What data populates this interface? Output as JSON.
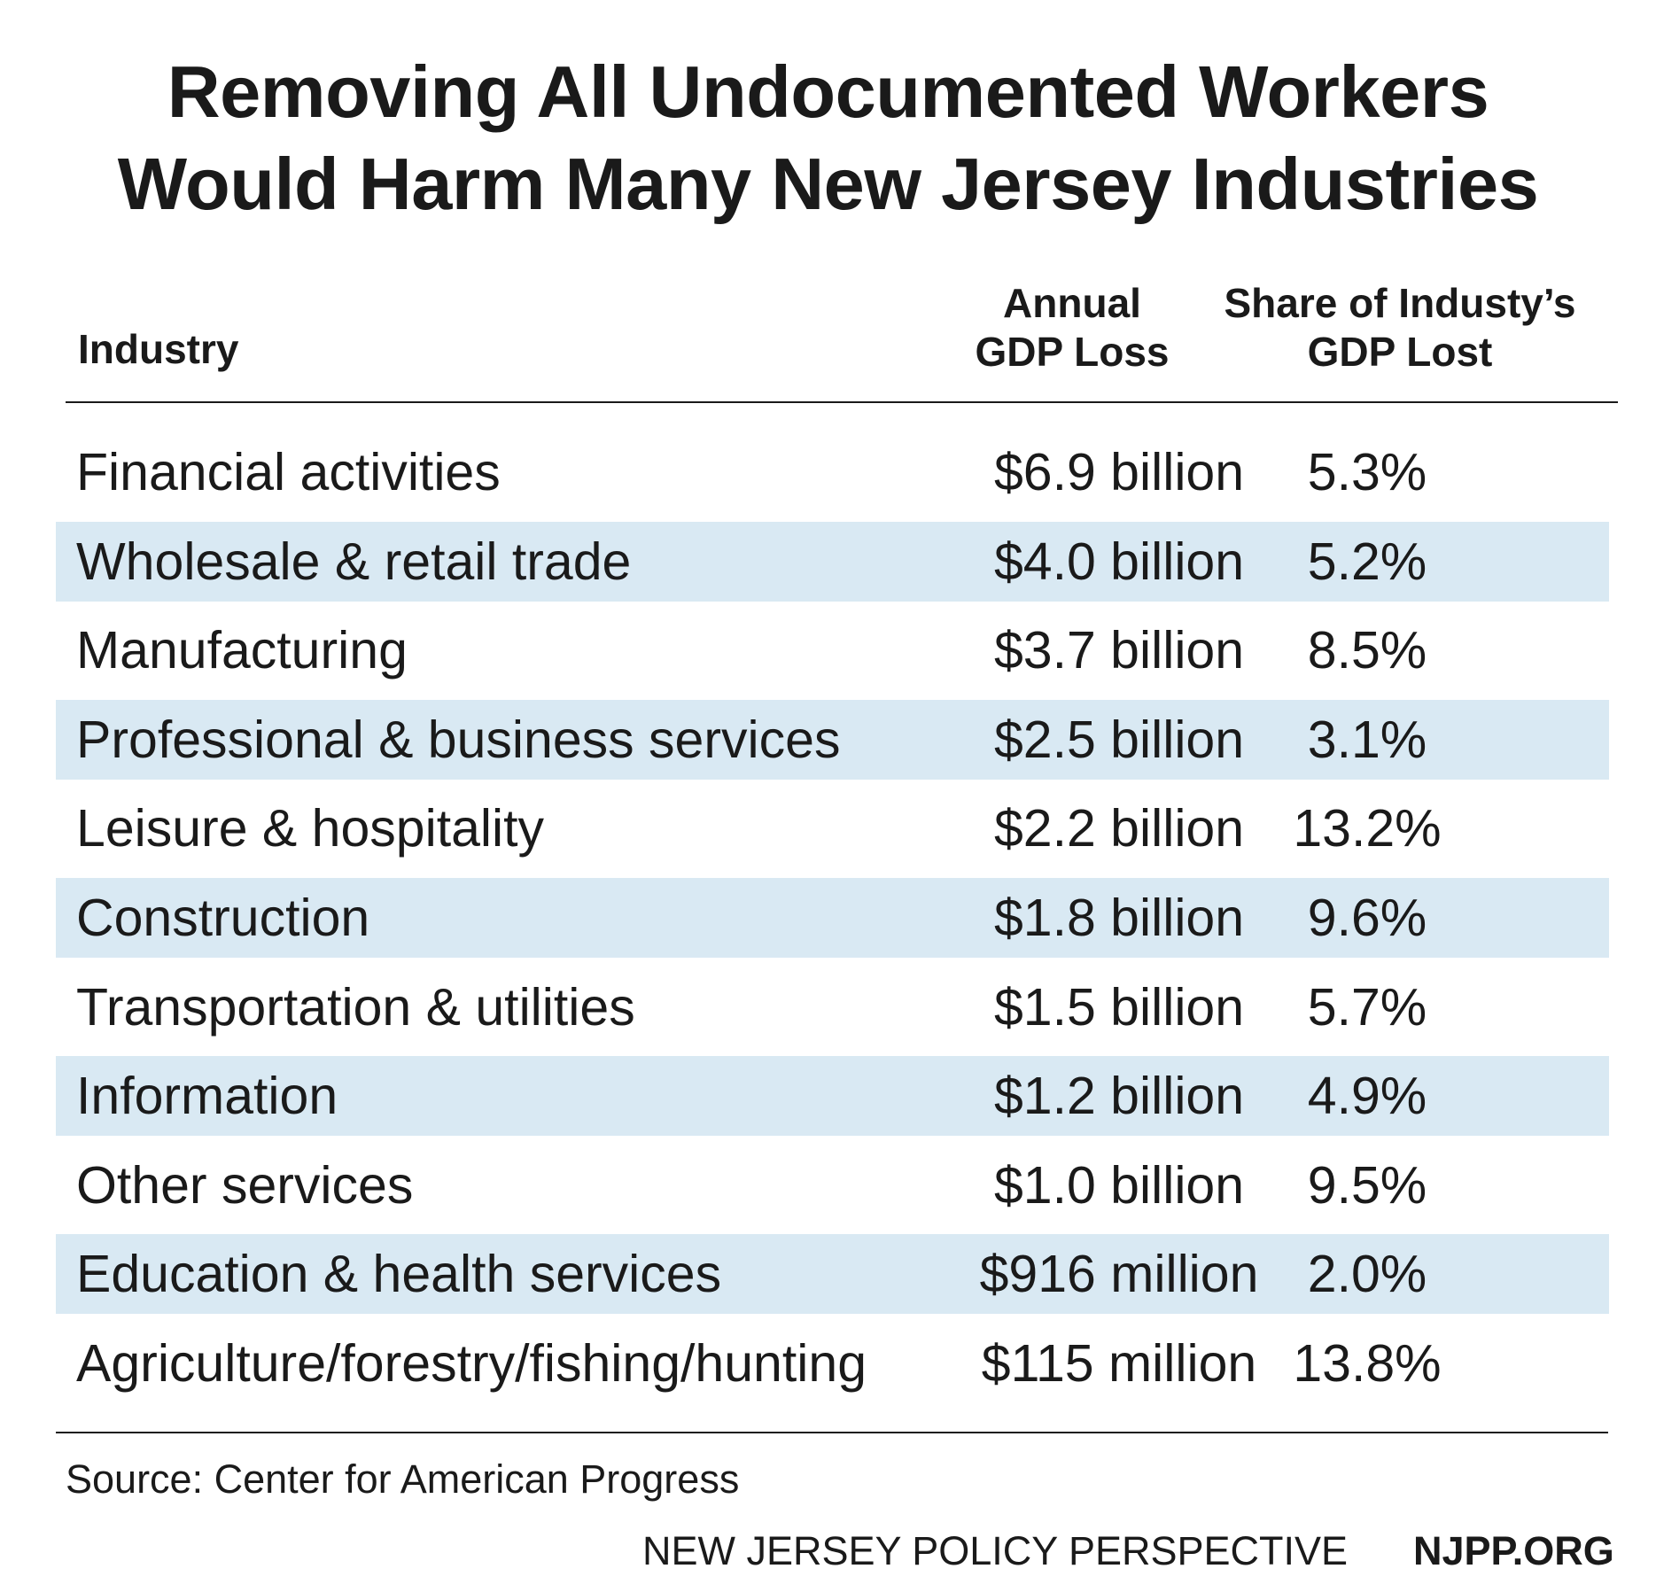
{
  "title_lines": [
    "Removing All Undocumented Workers",
    "Would Harm Many New Jersey Industries"
  ],
  "headers": {
    "industry": "Industry",
    "loss_line1": "Annual",
    "loss_line2": "GDP Loss",
    "share_line1": "Share of Industy’s",
    "share_line2": "GDP Lost"
  },
  "chart_data": {
    "type": "table",
    "title": "Removing All Undocumented Workers Would Harm Many New Jersey Industries",
    "columns": [
      "Industry",
      "Annual GDP Loss",
      "Share of Industy’s GDP Lost"
    ],
    "rows": [
      {
        "industry": "Financial activities",
        "loss": "$6.9 billion",
        "share": "5.3%",
        "shaded": false
      },
      {
        "industry": "Wholesale & retail trade",
        "loss": "$4.0 billion",
        "share": "5.2%",
        "shaded": true
      },
      {
        "industry": "Manufacturing",
        "loss": "$3.7 billion",
        "share": "8.5%",
        "shaded": false
      },
      {
        "industry": "Professional & business services",
        "loss": "$2.5 billion",
        "share": "3.1%",
        "shaded": true
      },
      {
        "industry": "Leisure & hospitality",
        "loss": "$2.2 billion",
        "share": "13.2%",
        "shaded": false
      },
      {
        "industry": "Construction",
        "loss": "$1.8 billion",
        "share": "9.6%",
        "shaded": true
      },
      {
        "industry": "Transportation & utilities",
        "loss": "$1.5 billion",
        "share": "5.7%",
        "shaded": false
      },
      {
        "industry": "Information",
        "loss": "$1.2 billion",
        "share": "4.9%",
        "shaded": true
      },
      {
        "industry": "Other services",
        "loss": "$1.0 billion",
        "share": "9.5%",
        "shaded": false
      },
      {
        "industry": "Education & health services",
        "loss": "$916 million",
        "share": "2.0%",
        "shaded": true
      },
      {
        "industry": "Agriculture/forestry/fishing/hunting",
        "loss": "$115 million",
        "share": "13.8%",
        "shaded": false
      }
    ]
  },
  "source": "Source: Center for American Progress",
  "footer": {
    "org": "NEW JERSEY POLICY PERSPECTIVE",
    "url": "NJPP.ORG"
  },
  "colors": {
    "shaded_row": "#d9e9f3",
    "text": "#1a1a1a",
    "background": "#ffffff"
  }
}
